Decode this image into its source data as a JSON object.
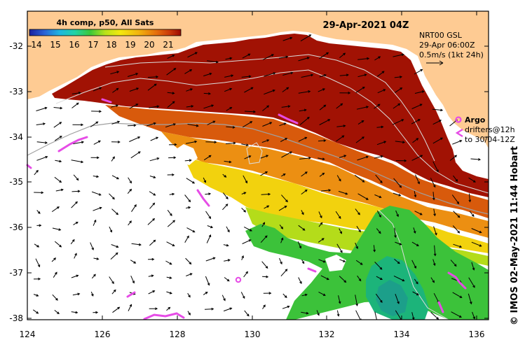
{
  "map": {
    "title": "29-Apr-2021 04Z",
    "composite_label": "4h comp, p50, All Sats",
    "colorbar": {
      "ticks": [
        "14",
        "15",
        "16",
        "17",
        "18",
        "19",
        "20",
        "21"
      ],
      "min": 13.5,
      "max": 22,
      "colors": [
        "#1a1f9e",
        "#2a63d6",
        "#1fb6e0",
        "#22d3a5",
        "#3ac83a",
        "#b8e21a",
        "#f3e80e",
        "#f2b40e",
        "#e56d0c",
        "#c8370a",
        "#9c0a03"
      ]
    },
    "currents_label": {
      "line1": "NRT00 GSL",
      "line2": "29-Apr 06:00Z",
      "line3": "0.5m/s (1kt 24h)"
    },
    "argo_legend": {
      "argo": "Argo",
      "drifters_line1": "drifters@12h",
      "drifters_line2": "to 30/04-12Z"
    },
    "credit": "© IMOS 02-May-2021 11:44 Hobart",
    "colors": {
      "land": "#fecb93",
      "no_data": "#ffffff",
      "argo": "#e64ce6",
      "contour": "#d8d8d8",
      "shelf": "#a0a0a0"
    },
    "x_axis": {
      "ticks": [
        "124",
        "126",
        "128",
        "130",
        "132",
        "134",
        "136"
      ],
      "range_deg_e": [
        124,
        136.6
      ]
    },
    "y_axis": {
      "ticks": [
        "-32",
        "-33",
        "-34",
        "-35",
        "-36",
        "-37",
        "-38"
      ],
      "range_deg": [
        -31.4,
        -38.1
      ]
    }
  }
}
